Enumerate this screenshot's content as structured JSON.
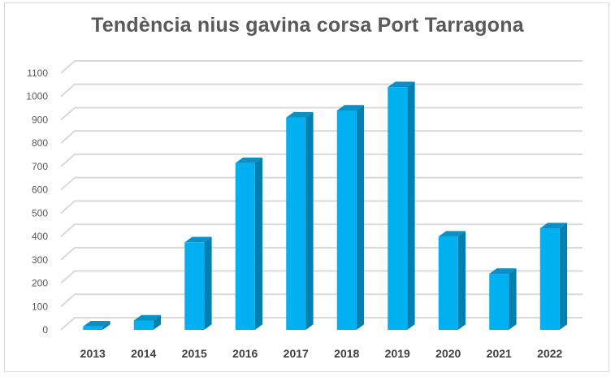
{
  "chart_data": {
    "type": "bar",
    "title": "Tendència nius gavina corsa Port Tarragona",
    "categories": [
      "2013",
      "2014",
      "2015",
      "2016",
      "2017",
      "2018",
      "2019",
      "2020",
      "2021",
      "2022"
    ],
    "values": [
      15,
      40,
      375,
      715,
      910,
      940,
      1040,
      400,
      240,
      435
    ],
    "ylim": [
      0,
      1100
    ],
    "yticks": [
      0,
      100,
      200,
      300,
      400,
      500,
      600,
      700,
      800,
      900,
      1000,
      1100
    ],
    "ylabels": [
      "0",
      "100",
      "200",
      "300",
      "400",
      "500",
      "600",
      "700",
      "800",
      "900",
      "1000",
      "1100"
    ],
    "xlabel": "",
    "ylabel": "",
    "grid": true,
    "legend": "none",
    "style": "3d-column",
    "colors": {
      "bar_front": "#00b0f0",
      "bar_side": "#0080b0",
      "bar_top": "#0a90c4",
      "grid": "#d9d9d9",
      "text": "#595959"
    }
  }
}
